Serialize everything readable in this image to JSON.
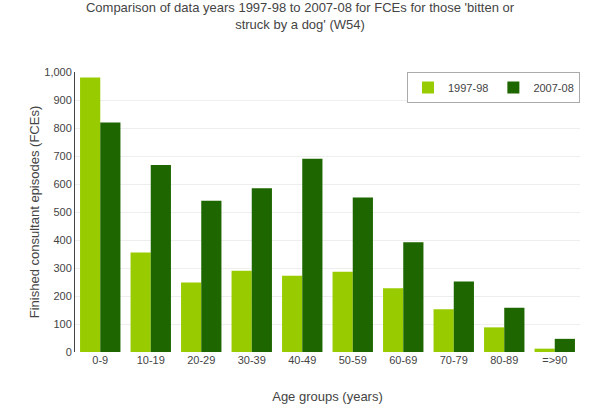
{
  "chart_data": {
    "type": "bar",
    "title": "Comparison of data years 1997-98 to 2007-08 for FCEs for those 'bitten or\nstruck by a dog' (W54)",
    "xlabel": "Age groups (years)",
    "ylabel": "Finished consultant episodes (FCEs)",
    "categories": [
      "0-9",
      "10-19",
      "20-29",
      "30-39",
      "40-49",
      "50-59",
      "60-69",
      "70-79",
      "80-89",
      "=>90"
    ],
    "series": [
      {
        "name": "1997-98",
        "color": "#99CC00",
        "values": [
          980,
          355,
          248,
          290,
          272,
          287,
          228,
          153,
          88,
          12
        ]
      },
      {
        "name": "2007-08",
        "color": "#1E6600",
        "values": [
          820,
          668,
          540,
          585,
          690,
          552,
          392,
          252,
          158,
          47
        ]
      }
    ],
    "ylim": [
      0,
      1000
    ],
    "yticks": [
      0,
      100,
      200,
      300,
      400,
      500,
      600,
      700,
      800,
      900,
      {
        "value": 1000,
        "label": "1,000"
      }
    ],
    "grid": true,
    "legend": "upper right"
  }
}
